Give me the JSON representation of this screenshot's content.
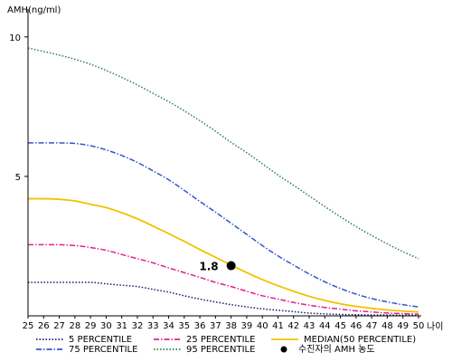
{
  "chart_data": {
    "type": "line",
    "title": "",
    "ylabel": "AMH(ng/ml)",
    "xlabel": "나이",
    "x": [
      25,
      26,
      27,
      28,
      29,
      30,
      31,
      32,
      33,
      34,
      35,
      36,
      37,
      38,
      39,
      40,
      41,
      42,
      43,
      44,
      45,
      46,
      47,
      48,
      49,
      50
    ],
    "xlim": [
      25,
      50
    ],
    "ylim": [
      0,
      11
    ],
    "y_ticks": [
      5,
      10
    ],
    "x_ticks": [
      "25",
      "26",
      "27",
      "28",
      "29",
      "30",
      "31",
      "32",
      "33",
      "34",
      "35",
      "36",
      "37",
      "38",
      "39",
      "40",
      "41",
      "42",
      "43",
      "44",
      "45",
      "46",
      "47",
      "48",
      "49",
      "50"
    ],
    "grid": false,
    "legend_position": "bottom",
    "series": [
      {
        "name": "5 PERCENTILE",
        "color": "#1a1a6e",
        "style": "dotted",
        "values": [
          1.2,
          1.2,
          1.2,
          1.2,
          1.2,
          1.15,
          1.1,
          1.05,
          0.95,
          0.85,
          0.72,
          0.6,
          0.5,
          0.4,
          0.32,
          0.25,
          0.2,
          0.15,
          0.1,
          0.07,
          0.05,
          0.04,
          0.03,
          0.03,
          0.02,
          0.02
        ]
      },
      {
        "name": "25 PERCENTILE",
        "color": "#e0218a",
        "style": "dashdot",
        "values": [
          2.55,
          2.55,
          2.55,
          2.52,
          2.45,
          2.35,
          2.2,
          2.05,
          1.9,
          1.72,
          1.55,
          1.38,
          1.2,
          1.05,
          0.88,
          0.72,
          0.6,
          0.48,
          0.38,
          0.3,
          0.24,
          0.18,
          0.14,
          0.1,
          0.08,
          0.06
        ]
      },
      {
        "name": "MEDIAN(50 PERCENTILE)",
        "color": "#f2c200",
        "style": "solid",
        "values": [
          4.2,
          4.2,
          4.18,
          4.12,
          4.0,
          3.88,
          3.7,
          3.48,
          3.22,
          2.95,
          2.67,
          2.38,
          2.1,
          1.82,
          1.55,
          1.3,
          1.08,
          0.88,
          0.7,
          0.55,
          0.43,
          0.34,
          0.27,
          0.21,
          0.17,
          0.14
        ]
      },
      {
        "name": "75 PERCENTILE",
        "color": "#3355cc",
        "style": "dashdot",
        "values": [
          6.2,
          6.2,
          6.2,
          6.18,
          6.1,
          5.95,
          5.75,
          5.5,
          5.2,
          4.88,
          4.5,
          4.1,
          3.72,
          3.32,
          2.92,
          2.52,
          2.15,
          1.82,
          1.5,
          1.22,
          0.98,
          0.78,
          0.62,
          0.5,
          0.4,
          0.32
        ]
      },
      {
        "name": "95 PERCENTILE",
        "color": "#2e7d4f",
        "style": "dotted",
        "values": [
          9.6,
          9.48,
          9.35,
          9.2,
          9.02,
          8.8,
          8.55,
          8.28,
          7.98,
          7.68,
          7.35,
          7.0,
          6.62,
          6.22,
          5.85,
          5.45,
          5.05,
          4.68,
          4.3,
          3.92,
          3.55,
          3.2,
          2.88,
          2.58,
          2.3,
          2.05
        ]
      }
    ],
    "points": [
      {
        "name": "수진자의 AMH 농도",
        "x": 38,
        "y": 1.8,
        "label": "1.8",
        "color": "#000000"
      }
    ]
  }
}
